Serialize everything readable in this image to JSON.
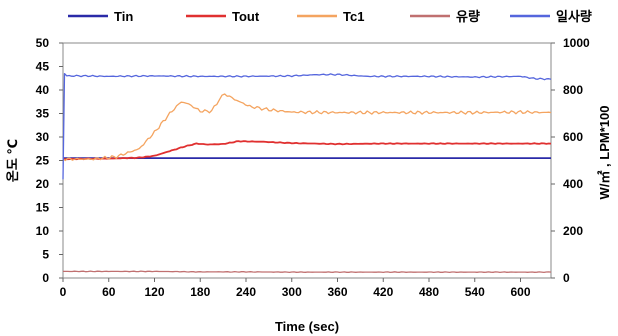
{
  "chart_data": {
    "type": "line",
    "title": "",
    "xlabel": "Time (sec)",
    "ylabel_left": "온도 ℃",
    "ylabel_right": "W/㎡ , LPM*100",
    "xlim": [
      0,
      640
    ],
    "ylim_left": [
      0,
      50
    ],
    "ylim_right": [
      0,
      1000
    ],
    "x_ticks": [
      0,
      60,
      120,
      180,
      240,
      300,
      360,
      420,
      480,
      540,
      600
    ],
    "y_left_ticks": [
      0,
      5,
      10,
      15,
      20,
      25,
      30,
      35,
      40,
      45,
      50
    ],
    "y_right_ticks": [
      0,
      200,
      400,
      600,
      800,
      1000
    ],
    "grid": false,
    "legend_position": "top",
    "series": [
      {
        "name": "Tin",
        "axis": "left",
        "color": "#2a2aa8",
        "x": [
          0,
          2,
          5,
          60,
          120,
          180,
          240,
          300,
          360,
          420,
          480,
          540,
          600,
          640
        ],
        "values": [
          25.5,
          25.5,
          25.5,
          25.5,
          25.5,
          25.5,
          25.5,
          25.5,
          25.5,
          25.5,
          25.5,
          25.5,
          25.5,
          25.5
        ]
      },
      {
        "name": "Tout",
        "axis": "left",
        "color": "#e03030",
        "x": [
          0,
          60,
          100,
          120,
          140,
          160,
          175,
          190,
          210,
          230,
          260,
          300,
          360,
          420,
          480,
          540,
          600,
          640
        ],
        "values": [
          25.3,
          25.4,
          25.6,
          26.0,
          27.0,
          28.0,
          28.6,
          28.4,
          28.5,
          29.1,
          29.0,
          28.7,
          28.5,
          28.6,
          28.6,
          28.6,
          28.6,
          28.6
        ],
        "x_label_note": ""
      },
      {
        "name": "Tc1",
        "axis": "left",
        "color": "#f4a460",
        "x": [
          0,
          40,
          70,
          100,
          120,
          140,
          155,
          165,
          180,
          195,
          205,
          212,
          225,
          245,
          270,
          300,
          360,
          420,
          480,
          540,
          600,
          640
        ],
        "values": [
          25.3,
          25.3,
          25.8,
          27.5,
          31.0,
          35.0,
          37.5,
          37.0,
          35.5,
          35.5,
          38.0,
          39.2,
          38.0,
          36.5,
          35.8,
          35.3,
          35.2,
          35.2,
          35.2,
          35.2,
          35.3,
          35.2
        ]
      },
      {
        "name": "유량",
        "axis": "right",
        "color": "#c07070",
        "x": [
          0,
          60,
          120,
          180,
          240,
          300,
          360,
          420,
          480,
          540,
          600,
          640
        ],
        "values": [
          28,
          28,
          28,
          26,
          26,
          25,
          25,
          25,
          25,
          25,
          25,
          25
        ]
      },
      {
        "name": "일사량",
        "axis": "right",
        "color": "#5566dd",
        "x": [
          0,
          2,
          5,
          30,
          60,
          120,
          180,
          240,
          300,
          330,
          360,
          400,
          420,
          480,
          540,
          600,
          620,
          640
        ],
        "values": [
          420,
          870,
          860,
          860,
          858,
          860,
          858,
          858,
          860,
          865,
          866,
          858,
          858,
          858,
          855,
          858,
          848,
          846
        ]
      }
    ]
  }
}
